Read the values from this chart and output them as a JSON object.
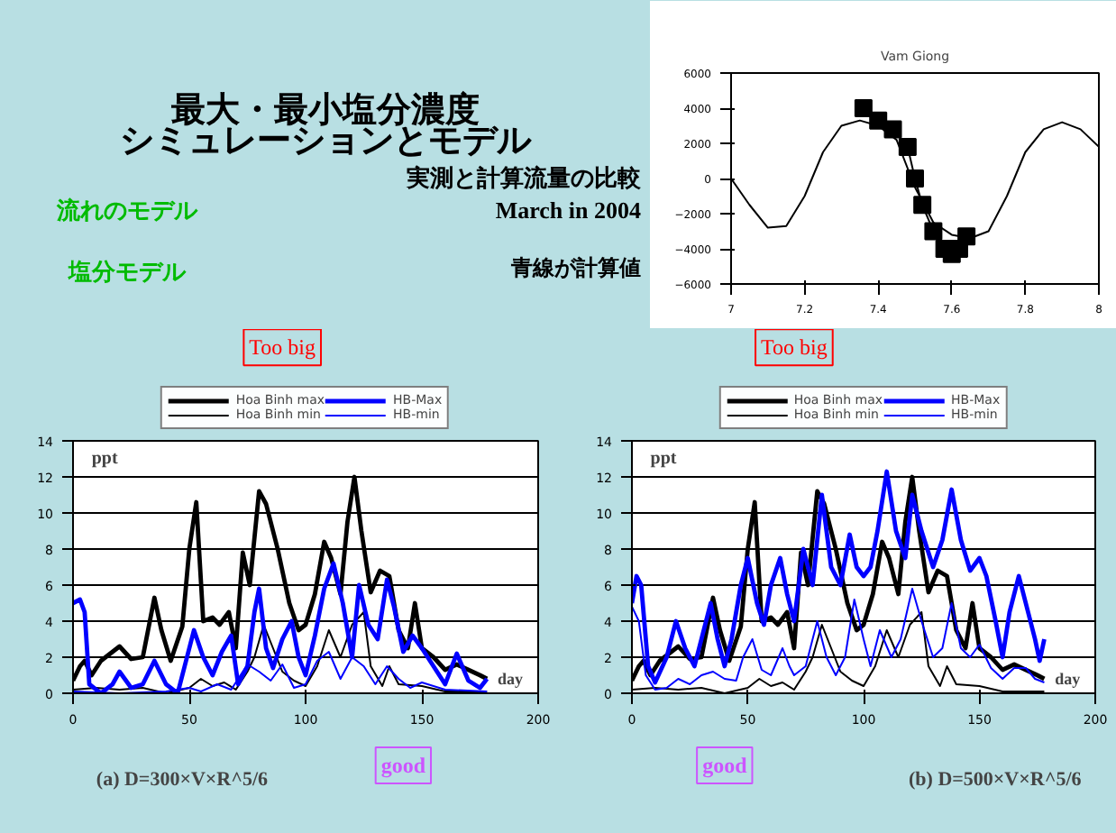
{
  "chart_data": [
    {
      "type": "other",
      "title": "最大・最小塩分濃度",
      "subtitle": "シミュレーションとモデル",
      "annotations": [
        "流れのモデル",
        "塩分モデル",
        "実測と計算流量の比較",
        "March in 2004",
        "青線が計算値"
      ]
    },
    {
      "type": "line",
      "title": "Vam Giong",
      "xlim": [
        7.0,
        8.0
      ],
      "xticks": [
        {
          "value": 7.0,
          "label": "7"
        },
        7.2,
        7.4,
        7.6,
        7.8,
        8
      ],
      "ylim": [
        -6000,
        6000
      ],
      "yticks": [
        -6000,
        -4000,
        -2000,
        0,
        2000,
        4000,
        6000
      ],
      "grid": false,
      "legend": false,
      "series": [
        {
          "color": "#000000",
          "marker": "none",
          "x": [
            7.0,
            7.05,
            7.1,
            7.15,
            7.2,
            7.25,
            7.3,
            7.35,
            7.4,
            7.45,
            7.5,
            7.55,
            7.6,
            7.65,
            7.7,
            7.75,
            7.8,
            7.85,
            7.9,
            7.95,
            8.0
          ],
          "values": [
            0,
            -1500,
            -2800,
            -2700,
            -1000,
            1500,
            3000,
            3300,
            3000,
            2200,
            -500,
            -2500,
            -3200,
            -3400,
            -3000,
            -1000,
            1500,
            2800,
            3200,
            2800,
            1800
          ]
        },
        {
          "color": "#000000",
          "marker": "square",
          "x": [
            7.36,
            7.4,
            7.44,
            7.48,
            7.5,
            7.52,
            7.55,
            7.58,
            7.6,
            7.62,
            7.64
          ],
          "values": [
            4000,
            3300,
            2800,
            1800,
            0,
            -1500,
            -3000,
            -4000,
            -4300,
            -4000,
            -3300
          ]
        }
      ]
    },
    {
      "type": "line",
      "title": "(a) D=300×V×R^5/6",
      "xlabel": "day",
      "ylabel": "ppt",
      "xlim": [
        0,
        200
      ],
      "xticks": [
        0,
        50,
        100,
        150,
        200
      ],
      "ylim": [
        0,
        14
      ],
      "yticks": [
        0,
        2,
        4,
        6,
        8,
        10,
        12,
        14
      ],
      "grid": "y",
      "legend": "top",
      "marker": "none",
      "annotations": [
        "Too big",
        "good"
      ],
      "series": [
        {
          "name": "Hoa Binh max",
          "color": "#000000",
          "x": [
            0,
            3,
            5,
            8,
            12,
            20,
            25,
            30,
            35,
            38,
            42,
            47,
            50,
            53,
            56,
            60,
            63,
            67,
            70,
            73,
            76,
            80,
            83,
            88,
            93,
            97,
            100,
            104,
            108,
            111,
            115,
            118,
            121,
            124,
            128,
            132,
            136,
            140,
            144,
            147,
            150,
            155,
            160,
            165,
            170,
            175,
            178
          ],
          "values": [
            0.7,
            1.5,
            1.8,
            1,
            1.8,
            2.6,
            1.9,
            2,
            5.3,
            3.5,
            1.8,
            3.7,
            8,
            10.6,
            4,
            4.2,
            3.8,
            4.5,
            2.5,
            7.8,
            6,
            11.2,
            10.5,
            8,
            5,
            3.5,
            3.8,
            5.5,
            8.4,
            7.5,
            5.5,
            9.5,
            12,
            9,
            5.6,
            6.8,
            6.5,
            3.5,
            2.5,
            5,
            2.5,
            2,
            1.3,
            1.6,
            1.3,
            1,
            0.8
          ]
        },
        {
          "name": "Hoa Binh min",
          "color": "#000000",
          "x": [
            0,
            10,
            20,
            30,
            40,
            50,
            55,
            60,
            65,
            70,
            75,
            78,
            82,
            86,
            90,
            95,
            100,
            105,
            110,
            115,
            120,
            125,
            128,
            133,
            136,
            140,
            150,
            160,
            178
          ],
          "values": [
            0.2,
            0.3,
            0.2,
            0.3,
            0,
            0.3,
            0.8,
            0.4,
            0.6,
            0.2,
            1.2,
            2,
            3.8,
            2.5,
            1.2,
            0.7,
            0.4,
            1.5,
            3.5,
            2,
            3.8,
            4.5,
            1.5,
            0.4,
            1.5,
            0.5,
            0.4,
            0.1,
            0.1
          ]
        },
        {
          "name": "HB-Max",
          "color": "#0000ff",
          "x": [
            0,
            3,
            5,
            7,
            12,
            17,
            20,
            25,
            30,
            35,
            40,
            45,
            48,
            52,
            56,
            60,
            64,
            68,
            71,
            75,
            78,
            80,
            83,
            86,
            90,
            94,
            97,
            100,
            104,
            108,
            112,
            116,
            120,
            123,
            127,
            131,
            135,
            138,
            142,
            146,
            150,
            155,
            160,
            165,
            170,
            175,
            178
          ],
          "values": [
            5,
            5.2,
            4.5,
            0.5,
            0,
            0.5,
            1.2,
            0.3,
            0.5,
            1.8,
            0.5,
            0,
            1.5,
            3.5,
            2,
            1,
            2.3,
            3.2,
            0.5,
            1.5,
            4.5,
            5.8,
            2.5,
            1.4,
            3,
            4,
            2,
            1,
            3.2,
            5.8,
            7.2,
            5,
            2,
            6,
            3.8,
            3,
            6.3,
            4.8,
            2.3,
            3.2,
            2.5,
            1.5,
            0.5,
            2.2,
            0.7,
            0.3,
            0.8
          ]
        },
        {
          "name": "HB-min",
          "color": "#0000ff",
          "x": [
            0,
            20,
            40,
            50,
            55,
            62,
            68,
            75,
            80,
            85,
            90,
            95,
            100,
            105,
            110,
            115,
            120,
            125,
            130,
            135,
            140,
            145,
            150,
            160,
            178
          ],
          "values": [
            0.1,
            0,
            0.1,
            0.3,
            0.1,
            0.5,
            0.2,
            1.6,
            1.2,
            0.7,
            1.6,
            0.3,
            0.5,
            1.8,
            2.3,
            0.8,
            2,
            1.5,
            0.5,
            1.5,
            0.8,
            0.3,
            0.6,
            0.2,
            0.1
          ]
        }
      ]
    },
    {
      "type": "line",
      "title": "(b) D=500×V×R^5/6",
      "xlabel": "day",
      "ylabel": "ppt",
      "xlim": [
        0,
        200
      ],
      "xticks": [
        0,
        50,
        100,
        150,
        200
      ],
      "ylim": [
        0,
        14
      ],
      "yticks": [
        0,
        2,
        4,
        6,
        8,
        10,
        12,
        14
      ],
      "grid": "y",
      "legend": "top",
      "marker": "none",
      "annotations": [
        "Too big",
        "good"
      ],
      "series": [
        {
          "name": "Hoa Binh max",
          "color": "#000000",
          "x": [
            0,
            3,
            5,
            8,
            12,
            20,
            25,
            30,
            35,
            38,
            42,
            47,
            50,
            53,
            56,
            60,
            63,
            67,
            70,
            73,
            76,
            80,
            83,
            88,
            93,
            97,
            100,
            104,
            108,
            111,
            115,
            118,
            121,
            124,
            128,
            132,
            136,
            140,
            144,
            147,
            150,
            155,
            160,
            165,
            170,
            175,
            178
          ],
          "values": [
            0.7,
            1.5,
            1.8,
            1,
            1.8,
            2.6,
            1.9,
            2,
            5.3,
            3.5,
            1.8,
            3.7,
            8,
            10.6,
            4,
            4.2,
            3.8,
            4.5,
            2.5,
            7.8,
            6,
            11.2,
            10.5,
            8,
            5,
            3.5,
            3.8,
            5.5,
            8.4,
            7.5,
            5.5,
            9.5,
            12,
            9,
            5.6,
            6.8,
            6.5,
            3.5,
            2.5,
            5,
            2.5,
            2,
            1.3,
            1.6,
            1.3,
            1,
            0.8
          ]
        },
        {
          "name": "Hoa Binh min",
          "color": "#000000",
          "x": [
            0,
            10,
            20,
            30,
            40,
            50,
            55,
            60,
            65,
            70,
            75,
            78,
            82,
            86,
            90,
            95,
            100,
            105,
            110,
            115,
            120,
            125,
            128,
            133,
            136,
            140,
            150,
            160,
            178
          ],
          "values": [
            0.2,
            0.3,
            0.2,
            0.3,
            0,
            0.3,
            0.8,
            0.4,
            0.6,
            0.2,
            1.2,
            2,
            3.8,
            2.5,
            1.2,
            0.7,
            0.4,
            1.5,
            3.5,
            2,
            3.8,
            4.5,
            1.5,
            0.4,
            1.5,
            0.5,
            0.4,
            0.1,
            0.1
          ]
        },
        {
          "name": "HB-Max",
          "color": "#0000ff",
          "x": [
            0,
            2,
            4,
            7,
            10,
            15,
            19,
            23,
            27,
            30,
            34,
            37,
            40,
            43,
            47,
            50,
            54,
            57,
            60,
            64,
            67,
            70,
            74,
            78,
            82,
            86,
            90,
            94,
            97,
            100,
            103,
            106,
            110,
            114,
            118,
            121,
            125,
            130,
            134,
            138,
            142,
            146,
            150,
            153,
            157,
            160,
            163,
            167,
            170,
            174,
            176,
            178
          ],
          "values": [
            5,
            6.5,
            6,
            1.5,
            0.6,
            2,
            4,
            2.5,
            1.5,
            3,
            5,
            3,
            1.5,
            3,
            6,
            7.5,
            5,
            3.8,
            6,
            7.5,
            5.5,
            4,
            8,
            6,
            11,
            7,
            6,
            8.8,
            7,
            6.5,
            7,
            9,
            12.3,
            9,
            7.5,
            11,
            9,
            7,
            8.5,
            11.3,
            8.5,
            6.8,
            7.5,
            6.5,
            4,
            2,
            4.5,
            6.5,
            5,
            3,
            1.8,
            3
          ]
        },
        {
          "name": "HB-min",
          "color": "#0000ff",
          "x": [
            0,
            3,
            6,
            10,
            15,
            20,
            25,
            30,
            35,
            40,
            45,
            48,
            52,
            56,
            60,
            65,
            68,
            70,
            75,
            80,
            84,
            88,
            92,
            96,
            100,
            103,
            107,
            112,
            116,
            121,
            125,
            130,
            134,
            138,
            142,
            146,
            150,
            155,
            160,
            165,
            170,
            174,
            178
          ],
          "values": [
            4.8,
            4,
            1,
            0.2,
            0.3,
            0.8,
            0.5,
            1,
            1.2,
            0.8,
            0.7,
            2,
            3,
            1.3,
            1,
            2.5,
            1.5,
            1,
            1.5,
            4,
            2,
            1,
            2,
            5.2,
            3,
            1.5,
            3.5,
            2,
            3,
            5.8,
            4,
            2,
            2.5,
            5,
            2.5,
            2,
            2.7,
            1.4,
            0.8,
            1.4,
            1.4,
            0.8,
            0.6
          ]
        }
      ]
    }
  ]
}
